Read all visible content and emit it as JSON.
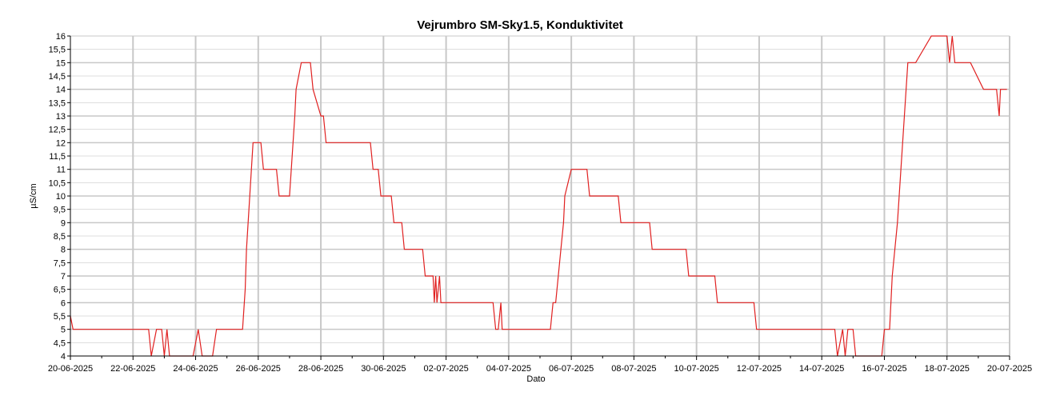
{
  "chart_data": {
    "type": "line",
    "title": "Vejrumbro SM-Sky1.5, Konduktivitet",
    "xlabel": "Dato",
    "ylabel": "µS/cm",
    "xlim": [
      "2025-06-20",
      "2025-07-20"
    ],
    "ylim": [
      4,
      16
    ],
    "x_ticks": [
      "20-06-2025",
      "22-06-2025",
      "24-06-2025",
      "26-06-2025",
      "28-06-2025",
      "30-06-2025",
      "02-07-2025",
      "04-07-2025",
      "06-07-2025",
      "08-07-2025",
      "10-07-2025",
      "12-07-2025",
      "14-07-2025",
      "16-07-2025",
      "18-07-2025",
      "20-07-2025"
    ],
    "y_ticks": [
      "4",
      "4,5",
      "5",
      "5,5",
      "6",
      "6,5",
      "7",
      "7,5",
      "8",
      "8,5",
      "9",
      "9,5",
      "10",
      "10,5",
      "11",
      "11,5",
      "12",
      "12,5",
      "13",
      "13,5",
      "14",
      "14,5",
      "15",
      "15,5",
      "16"
    ],
    "grid": true,
    "series": [
      {
        "color": "#e02020",
        "points": [
          [
            "2025-06-20 00:00",
            5.5
          ],
          [
            "2025-06-20 02:00",
            5.0
          ],
          [
            "2025-06-22 12:00",
            5.0
          ],
          [
            "2025-06-22 14:00",
            4.0
          ],
          [
            "2025-06-22 18:00",
            5.0
          ],
          [
            "2025-06-22 22:00",
            5.0
          ],
          [
            "2025-06-23 00:00",
            4.0
          ],
          [
            "2025-06-23 02:00",
            5.0
          ],
          [
            "2025-06-23 04:00",
            4.0
          ],
          [
            "2025-06-23 22:00",
            4.0
          ],
          [
            "2025-06-24 02:00",
            5.0
          ],
          [
            "2025-06-24 05:00",
            4.0
          ],
          [
            "2025-06-24 13:00",
            4.0
          ],
          [
            "2025-06-24 16:00",
            5.0
          ],
          [
            "2025-06-25 12:00",
            5.0
          ],
          [
            "2025-06-25 14:00",
            6.5
          ],
          [
            "2025-06-25 15:00",
            8.0
          ],
          [
            "2025-06-25 20:00",
            12.0
          ],
          [
            "2025-06-26 02:00",
            12.0
          ],
          [
            "2025-06-26 04:00",
            11.0
          ],
          [
            "2025-06-26 14:00",
            11.0
          ],
          [
            "2025-06-26 16:00",
            10.0
          ],
          [
            "2025-06-27 00:00",
            10.0
          ],
          [
            "2025-06-27 04:00",
            13.0
          ],
          [
            "2025-06-27 05:00",
            14.0
          ],
          [
            "2025-06-27 09:00",
            15.0
          ],
          [
            "2025-06-27 16:00",
            15.0
          ],
          [
            "2025-06-27 18:00",
            14.0
          ],
          [
            "2025-06-28 00:00",
            13.0
          ],
          [
            "2025-06-28 02:00",
            13.0
          ],
          [
            "2025-06-28 04:00",
            12.0
          ],
          [
            "2025-06-29 14:00",
            12.0
          ],
          [
            "2025-06-29 16:00",
            11.0
          ],
          [
            "2025-06-29 20:00",
            11.0
          ],
          [
            "2025-06-29 22:00",
            10.0
          ],
          [
            "2025-06-30 06:00",
            10.0
          ],
          [
            "2025-06-30 08:00",
            9.0
          ],
          [
            "2025-06-30 14:00",
            9.0
          ],
          [
            "2025-06-30 16:00",
            8.0
          ],
          [
            "2025-07-01 06:00",
            8.0
          ],
          [
            "2025-07-01 08:00",
            7.0
          ],
          [
            "2025-07-01 14:00",
            7.0
          ],
          [
            "2025-07-01 15:00",
            6.0
          ],
          [
            "2025-07-01 16:00",
            7.0
          ],
          [
            "2025-07-01 17:00",
            6.0
          ],
          [
            "2025-07-01 19:00",
            7.0
          ],
          [
            "2025-07-01 20:00",
            6.0
          ],
          [
            "2025-07-03 12:00",
            6.0
          ],
          [
            "2025-07-03 14:00",
            5.0
          ],
          [
            "2025-07-03 16:00",
            5.0
          ],
          [
            "2025-07-03 18:00",
            6.0
          ],
          [
            "2025-07-03 19:00",
            5.0
          ],
          [
            "2025-07-05 08:00",
            5.0
          ],
          [
            "2025-07-05 10:00",
            6.0
          ],
          [
            "2025-07-05 12:00",
            6.0
          ],
          [
            "2025-07-05 16:00",
            8.0
          ],
          [
            "2025-07-05 18:00",
            9.0
          ],
          [
            "2025-07-05 19:00",
            10.0
          ],
          [
            "2025-07-06 00:00",
            11.0
          ],
          [
            "2025-07-06 12:00",
            11.0
          ],
          [
            "2025-07-06 14:00",
            10.0
          ],
          [
            "2025-07-07 12:00",
            10.0
          ],
          [
            "2025-07-07 14:00",
            9.0
          ],
          [
            "2025-07-08 12:00",
            9.0
          ],
          [
            "2025-07-08 14:00",
            8.0
          ],
          [
            "2025-07-09 16:00",
            8.0
          ],
          [
            "2025-07-09 18:00",
            7.0
          ],
          [
            "2025-07-10 14:00",
            7.0
          ],
          [
            "2025-07-10 16:00",
            6.0
          ],
          [
            "2025-07-11 20:00",
            6.0
          ],
          [
            "2025-07-11 22:00",
            5.0
          ],
          [
            "2025-07-14 10:00",
            5.0
          ],
          [
            "2025-07-14 12:00",
            4.0
          ],
          [
            "2025-07-14 16:00",
            5.0
          ],
          [
            "2025-07-14 18:00",
            4.0
          ],
          [
            "2025-07-14 20:00",
            5.0
          ],
          [
            "2025-07-15 00:00",
            5.0
          ],
          [
            "2025-07-15 02:00",
            4.0
          ],
          [
            "2025-07-15 22:00",
            4.0
          ],
          [
            "2025-07-16 00:00",
            5.0
          ],
          [
            "2025-07-16 04:00",
            5.0
          ],
          [
            "2025-07-16 06:00",
            7.0
          ],
          [
            "2025-07-16 10:00",
            9.0
          ],
          [
            "2025-07-16 18:00",
            15.0
          ],
          [
            "2025-07-17 00:00",
            15.0
          ],
          [
            "2025-07-17 12:00",
            16.0
          ],
          [
            "2025-07-18 00:00",
            16.0
          ],
          [
            "2025-07-18 02:00",
            15.0
          ],
          [
            "2025-07-18 04:00",
            16.0
          ],
          [
            "2025-07-18 06:00",
            15.0
          ],
          [
            "2025-07-18 18:00",
            15.0
          ],
          [
            "2025-07-19 04:00",
            14.0
          ],
          [
            "2025-07-19 14:00",
            14.0
          ],
          [
            "2025-07-19 16:00",
            13.0
          ],
          [
            "2025-07-19 17:00",
            14.0
          ],
          [
            "2025-07-19 22:00",
            14.0
          ]
        ]
      }
    ]
  }
}
